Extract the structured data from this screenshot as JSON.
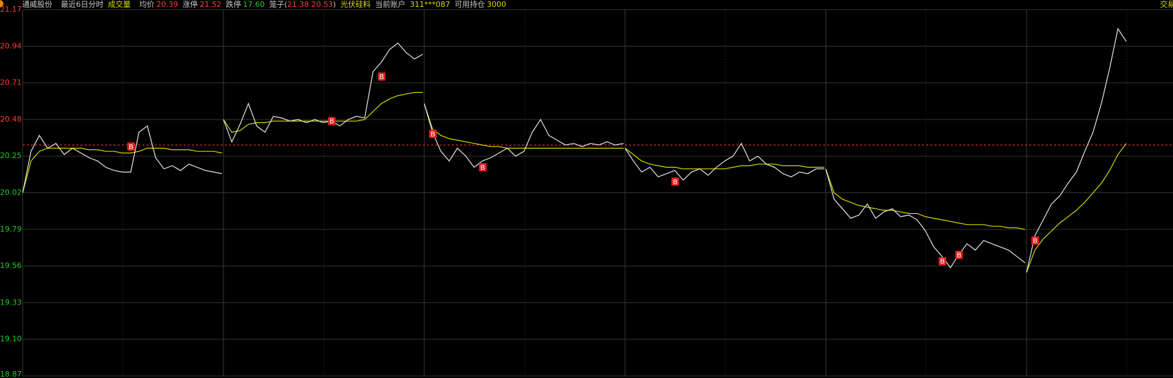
{
  "header": {
    "stock_name": "通威股份",
    "period": "最近6日分时",
    "indicator": "成交量",
    "avg_label": "均价",
    "avg_value": "20.39",
    "limit_up_label": "涨停",
    "limit_up_value": "21.52",
    "limit_down_label": "跌停",
    "limit_down_value": "17.60",
    "cage_label": "笼子(",
    "cage_value": "21.38 20.53",
    "cage_close": ")",
    "sector": "光伏硅料",
    "account_label": "当前账户",
    "account_value": "311***087",
    "position_label": "可用持仓",
    "position_value": "3000",
    "trade": "交易"
  },
  "chart_data": {
    "type": "line",
    "ylim": [
      18.87,
      21.17
    ],
    "yticks": [
      21.17,
      20.94,
      20.71,
      20.48,
      20.25,
      20.02,
      19.79,
      19.56,
      19.33,
      {
        "value": 19.1,
        "label": "19.10"
      },
      18.87
    ],
    "ref_line": 20.32,
    "up_color": "#ff3c3c",
    "down_color": "#22cc22",
    "price_color": "#e8e8e8",
    "avg_color": "#d8d800",
    "grid": true,
    "days": [
      {
        "price": [
          20.02,
          20.28,
          20.38,
          20.3,
          20.33,
          20.26,
          20.3,
          20.27,
          20.24,
          20.22,
          20.18,
          20.16,
          20.15,
          20.15,
          20.4,
          20.44,
          20.24,
          20.17,
          20.19,
          20.16,
          20.2,
          20.18,
          20.16,
          20.15,
          20.14
        ],
        "avg": [
          20.02,
          20.22,
          20.28,
          20.3,
          20.3,
          20.3,
          20.3,
          20.3,
          20.29,
          20.29,
          20.28,
          20.28,
          20.27,
          20.27,
          20.28,
          20.3,
          20.3,
          20.3,
          20.29,
          20.29,
          20.29,
          20.28,
          20.28,
          20.28,
          20.27
        ]
      },
      {
        "price": [
          20.48,
          20.34,
          20.45,
          20.58,
          20.44,
          20.4,
          20.5,
          20.49,
          20.47,
          20.48,
          20.46,
          20.48,
          20.46,
          20.47,
          20.44,
          20.48,
          20.5,
          20.49,
          20.78,
          20.84,
          20.92,
          20.96,
          20.9,
          20.86,
          20.89
        ],
        "avg": [
          20.48,
          20.4,
          20.41,
          20.45,
          20.46,
          20.46,
          20.47,
          20.47,
          20.47,
          20.47,
          20.47,
          20.47,
          20.47,
          20.47,
          20.47,
          20.47,
          20.47,
          20.48,
          20.53,
          20.58,
          20.61,
          20.63,
          20.64,
          20.65,
          20.65
        ]
      },
      {
        "price": [
          20.58,
          20.4,
          20.28,
          20.22,
          20.3,
          20.25,
          20.18,
          20.22,
          20.24,
          20.27,
          20.3,
          20.25,
          20.28,
          20.4,
          20.48,
          20.38,
          20.35,
          20.32,
          20.33,
          20.31,
          20.33,
          20.32,
          20.34,
          20.32,
          20.33
        ],
        "avg": [
          20.58,
          20.42,
          20.38,
          20.36,
          20.35,
          20.34,
          20.33,
          20.32,
          20.31,
          20.31,
          20.3,
          20.3,
          20.3,
          20.3,
          20.3,
          20.3,
          20.3,
          20.3,
          20.3,
          20.3,
          20.3,
          20.3,
          20.3,
          20.3,
          20.3
        ]
      },
      {
        "price": [
          20.3,
          20.22,
          20.15,
          20.18,
          20.12,
          20.14,
          20.16,
          20.1,
          20.15,
          20.17,
          20.13,
          20.18,
          20.22,
          20.25,
          20.33,
          20.22,
          20.25,
          20.2,
          20.18,
          20.14,
          20.12,
          20.15,
          20.14,
          20.17,
          20.17
        ],
        "avg": [
          20.3,
          20.26,
          20.22,
          20.2,
          20.19,
          20.18,
          20.18,
          20.17,
          20.17,
          20.17,
          20.17,
          20.17,
          20.17,
          20.18,
          20.19,
          20.19,
          20.2,
          20.2,
          20.2,
          20.19,
          20.19,
          20.19,
          20.18,
          20.18,
          20.18
        ]
      },
      {
        "price": [
          20.17,
          19.98,
          19.92,
          19.86,
          19.88,
          19.95,
          19.86,
          19.9,
          19.92,
          19.87,
          19.88,
          19.85,
          19.78,
          19.68,
          19.62,
          19.55,
          19.63,
          19.7,
          19.66,
          19.72,
          19.7,
          19.68,
          19.66,
          19.62,
          19.58
        ],
        "avg": [
          20.17,
          20.02,
          19.98,
          19.96,
          19.94,
          19.93,
          19.92,
          19.91,
          19.91,
          19.9,
          19.89,
          19.89,
          19.87,
          19.86,
          19.85,
          19.84,
          19.83,
          19.82,
          19.82,
          19.82,
          19.81,
          19.81,
          19.8,
          19.8,
          19.79
        ]
      },
      {
        "price": [
          19.52,
          19.75,
          19.85,
          19.95,
          20.0,
          20.08,
          20.15,
          20.28,
          20.4,
          20.58,
          20.8,
          21.05,
          20.97
        ],
        "avg": [
          19.52,
          19.66,
          19.73,
          19.78,
          19.83,
          19.87,
          19.91,
          19.96,
          20.02,
          20.08,
          20.16,
          20.26,
          20.33
        ]
      }
    ],
    "markers": [
      {
        "label": "B",
        "day": 0,
        "point": 13,
        "value": 20.31
      },
      {
        "label": "B",
        "day": 1,
        "point": 13,
        "value": 20.47
      },
      {
        "label": "B",
        "day": 1,
        "point": 19,
        "value": 20.75
      },
      {
        "label": "B",
        "day": 2,
        "point": 1,
        "value": 20.39
      },
      {
        "label": "B",
        "day": 2,
        "point": 7,
        "value": 20.18
      },
      {
        "label": "B",
        "day": 3,
        "point": 6,
        "value": 20.09
      },
      {
        "label": "B",
        "day": 4,
        "point": 14,
        "value": 19.59
      },
      {
        "label": "B",
        "day": 4,
        "point": 16,
        "value": 19.63
      },
      {
        "label": "B",
        "day": 5,
        "point": 1,
        "value": 19.72
      }
    ]
  }
}
